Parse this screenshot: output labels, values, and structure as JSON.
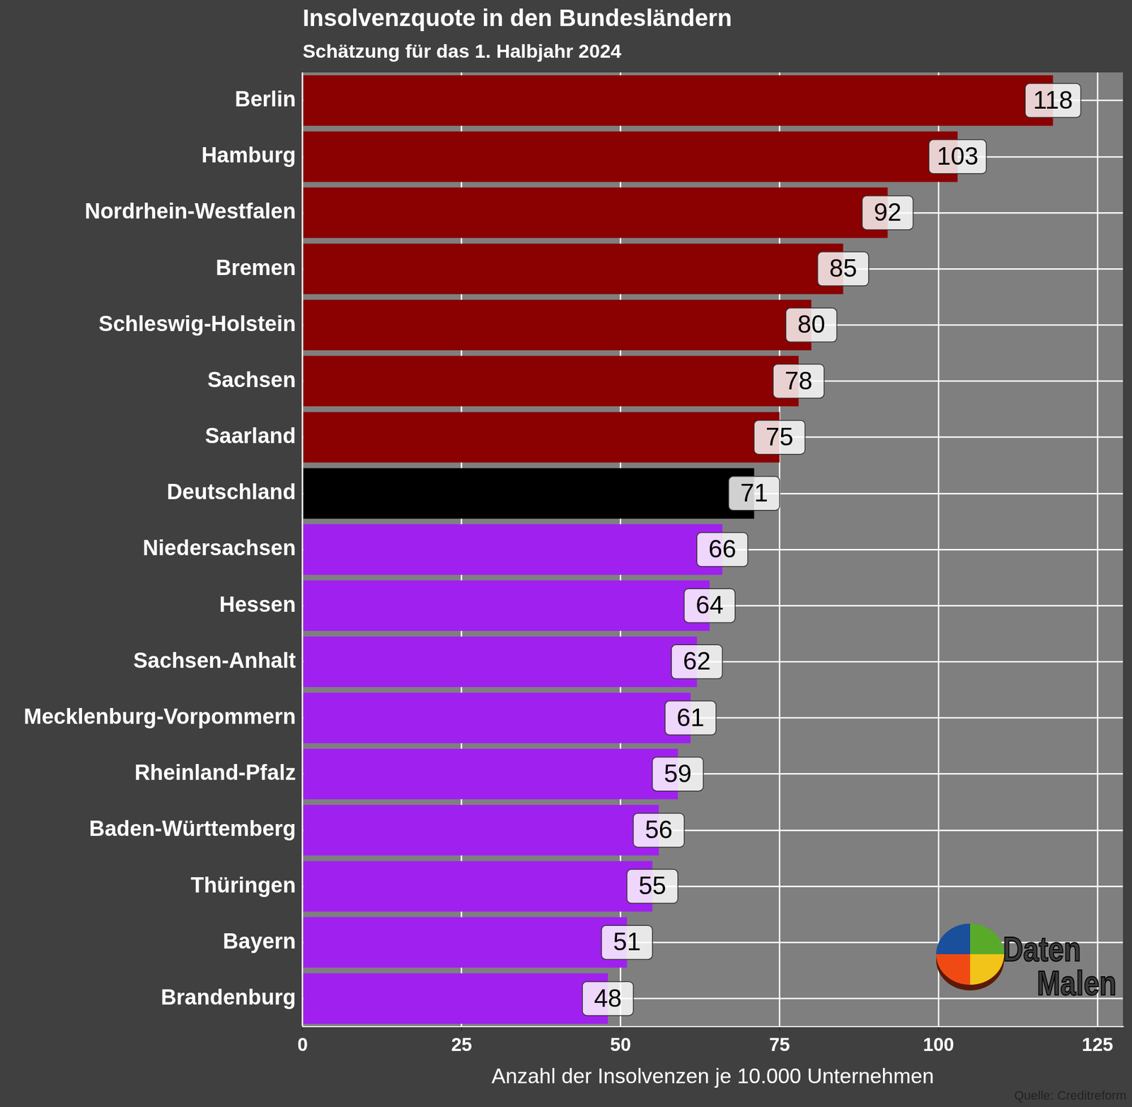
{
  "chart_data": {
    "type": "bar",
    "orientation": "horizontal",
    "title": "Insolvenzquote in den Bundesländern",
    "subtitle": "Schätzung für das 1. Halbjahr 2024",
    "x_label": "Anzahl der Insolvenzen je 10.000 Unternehmen",
    "categories": [
      "Berlin",
      "Hamburg",
      "Nordrhein-Westfalen",
      "Bremen",
      "Schleswig-Holstein",
      "Sachsen",
      "Saarland",
      "Deutschland",
      "Niedersachsen",
      "Hessen",
      "Sachsen-Anhalt",
      "Mecklenburg-Vorpommern",
      "Rheinland-Pfalz",
      "Baden-Württemberg",
      "Thüringen",
      "Bayern",
      "Brandenburg"
    ],
    "values": [
      118,
      103,
      92,
      85,
      80,
      78,
      75,
      71,
      66,
      64,
      62,
      61,
      59,
      56,
      55,
      51,
      48
    ],
    "colors": [
      "#8b0000",
      "#8b0000",
      "#8b0000",
      "#8b0000",
      "#8b0000",
      "#8b0000",
      "#8b0000",
      "#000000",
      "#a020f0",
      "#a020f0",
      "#a020f0",
      "#a020f0",
      "#a020f0",
      "#a020f0",
      "#a020f0",
      "#a020f0",
      "#a020f0"
    ],
    "xlim": [
      0,
      129
    ],
    "xticks": [
      0,
      25,
      50,
      75,
      100,
      125
    ],
    "grid": true,
    "data_labels": true,
    "annotations": [
      "Quelle: Creditreform",
      "Daten Malen"
    ]
  }
}
